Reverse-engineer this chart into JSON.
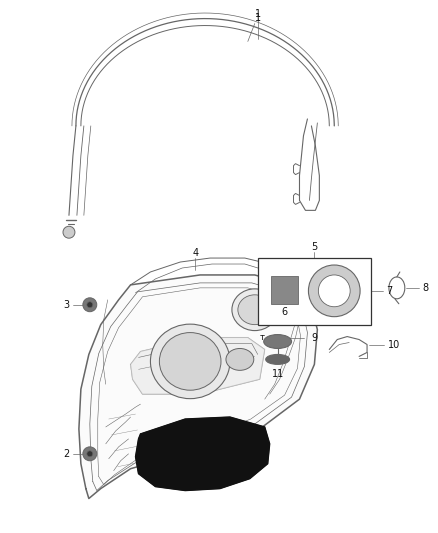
{
  "bg_color": "#ffffff",
  "line_color": "#666666",
  "label_color": "#111111",
  "figsize": [
    4.38,
    5.33
  ],
  "dpi": 100,
  "seal_color": "#aaaaaa",
  "panel_fill": "#f0f0f0",
  "dark_fill": "#222222"
}
